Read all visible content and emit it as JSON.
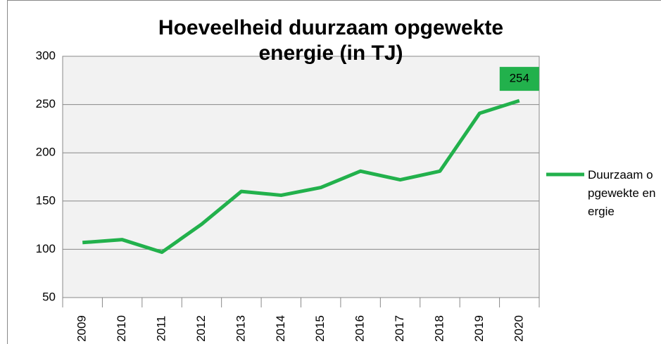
{
  "chart_data": {
    "type": "line",
    "title": "Hoeveelheid duurzaam opgewekte energie (in TJ)",
    "categories": [
      "2009",
      "2010",
      "2011",
      "2012",
      "2013",
      "2014",
      "2015",
      "2016",
      "2017",
      "2018",
      "2019",
      "2020"
    ],
    "series": [
      {
        "name": "Duurzaam opgewekte energie",
        "color": "#22b14c",
        "values": [
          107,
          110,
          97,
          126,
          160,
          156,
          164,
          181,
          172,
          181,
          241,
          254
        ]
      }
    ],
    "ylim": [
      50,
      300
    ],
    "yticks": [
      50,
      100,
      150,
      200,
      250,
      300
    ],
    "grid": true,
    "legend": "right"
  }
}
